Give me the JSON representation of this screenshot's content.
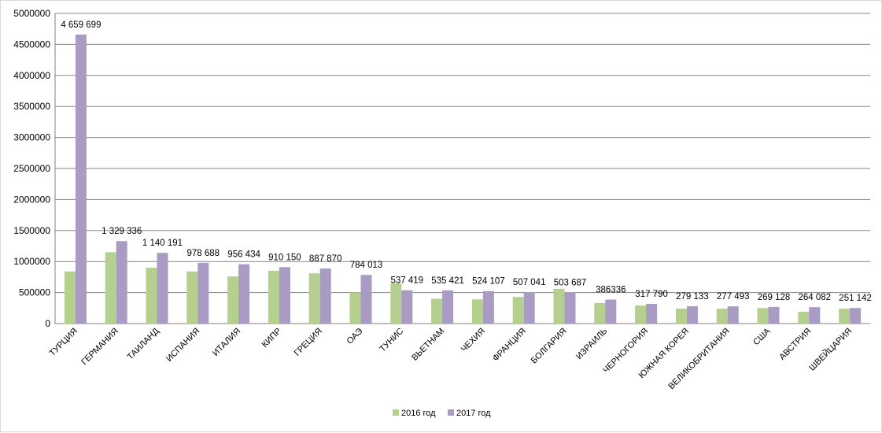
{
  "chart_data": {
    "type": "bar",
    "categories": [
      "ТУРЦИЯ",
      "ГЕРМАНИЯ",
      "ТАИЛАНД",
      "ИСПАНИЯ",
      "ИТАЛИЯ",
      "КИПР",
      "ГРЕЦИЯ",
      "ОАЭ",
      "ТУНИС",
      "ВЬЕТНАМ",
      "ЧЕХИЯ",
      "ФРАНЦИЯ",
      "БОЛГАРИЯ",
      "ИЗРАИЛЬ",
      "ЧЕРНОГОРИЯ",
      "ЮЖНАЯ КОРЕЯ",
      "ВЕЛИКОБРИТАНИЯ",
      "США",
      "АВСТРИЯ",
      "ШВЕЙЦАРИЯ"
    ],
    "series": [
      {
        "name": "2016 год",
        "color": "#b5cf8f",
        "values": [
          840000,
          1150000,
          900000,
          840000,
          760000,
          850000,
          810000,
          500000,
          650000,
          400000,
          390000,
          430000,
          560000,
          330000,
          290000,
          240000,
          240000,
          250000,
          190000,
          240000
        ]
      },
      {
        "name": "2017 год",
        "color": "#a99bc3",
        "values": [
          4659699,
          1329336,
          1140191,
          978688,
          956434,
          910150,
          887870,
          784013,
          537419,
          535421,
          524107,
          507041,
          503687,
          386336,
          317790,
          279133,
          277493,
          269128,
          264082,
          251142
        ]
      }
    ],
    "data_labels": [
      "4 659 699",
      "1 329 336",
      "1 140 191",
      "978 688",
      "956 434",
      "910 150",
      "887 870",
      "784 013",
      "537 419",
      "535 421",
      "524 107",
      "507 041",
      "503 687",
      "386336",
      "317 790",
      "279 133",
      "277 493",
      "269 128",
      "264 082",
      "251 142"
    ],
    "ylim": [
      0,
      5000000
    ],
    "yticks": [
      0,
      500000,
      1000000,
      1500000,
      2000000,
      2500000,
      3000000,
      3500000,
      4000000,
      4500000,
      5000000
    ],
    "ytick_labels": [
      "0",
      "500000",
      "1000000",
      "1500000",
      "2000000",
      "2500000",
      "3000000",
      "3500000",
      "4000000",
      "4500000",
      "5000000"
    ],
    "grid": true,
    "legend_position": "bottom"
  }
}
